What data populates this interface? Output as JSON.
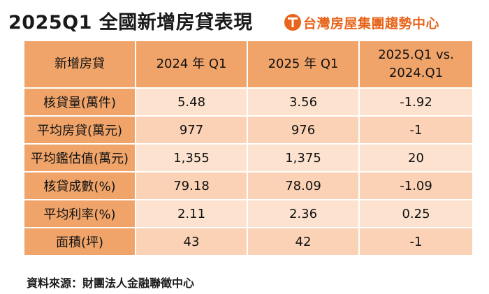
{
  "title": "2025Q1 全國新增房貸表現",
  "brand": {
    "name": "台灣房屋集團趨勢中心",
    "logo_icon": "taiwan-house-logo-icon",
    "color": "#e8651c"
  },
  "table": {
    "headers": [
      "新增房貸",
      "2024 年 Q1",
      "2025 年 Q1",
      "2025.Q1 vs.\n2024.Q1"
    ],
    "rows": [
      {
        "label": "核貸量(萬件)",
        "q1_2024": "5.48",
        "q1_2025": "3.56",
        "diff": "-1.92"
      },
      {
        "label": "平均房貸(萬元)",
        "q1_2024": "977",
        "q1_2025": "976",
        "diff": "-1"
      },
      {
        "label": "平均鑑估值(萬元)",
        "q1_2024": "1,355",
        "q1_2025": "1,375",
        "diff": "20"
      },
      {
        "label": "核貸成數(%)",
        "q1_2024": "79.18",
        "q1_2025": "78.09",
        "diff": "-1.09"
      },
      {
        "label": "平均利率(%)",
        "q1_2024": "2.11",
        "q1_2025": "2.36",
        "diff": "0.25"
      },
      {
        "label": "面積(坪)",
        "q1_2024": "43",
        "q1_2025": "42",
        "diff": "-1"
      }
    ]
  },
  "source": "資料來源：財團法人金融聯徵中心",
  "colors": {
    "header_bg": "#f0a46a",
    "row_light": "#fde3cf",
    "row_dark": "#fbd2b5"
  }
}
